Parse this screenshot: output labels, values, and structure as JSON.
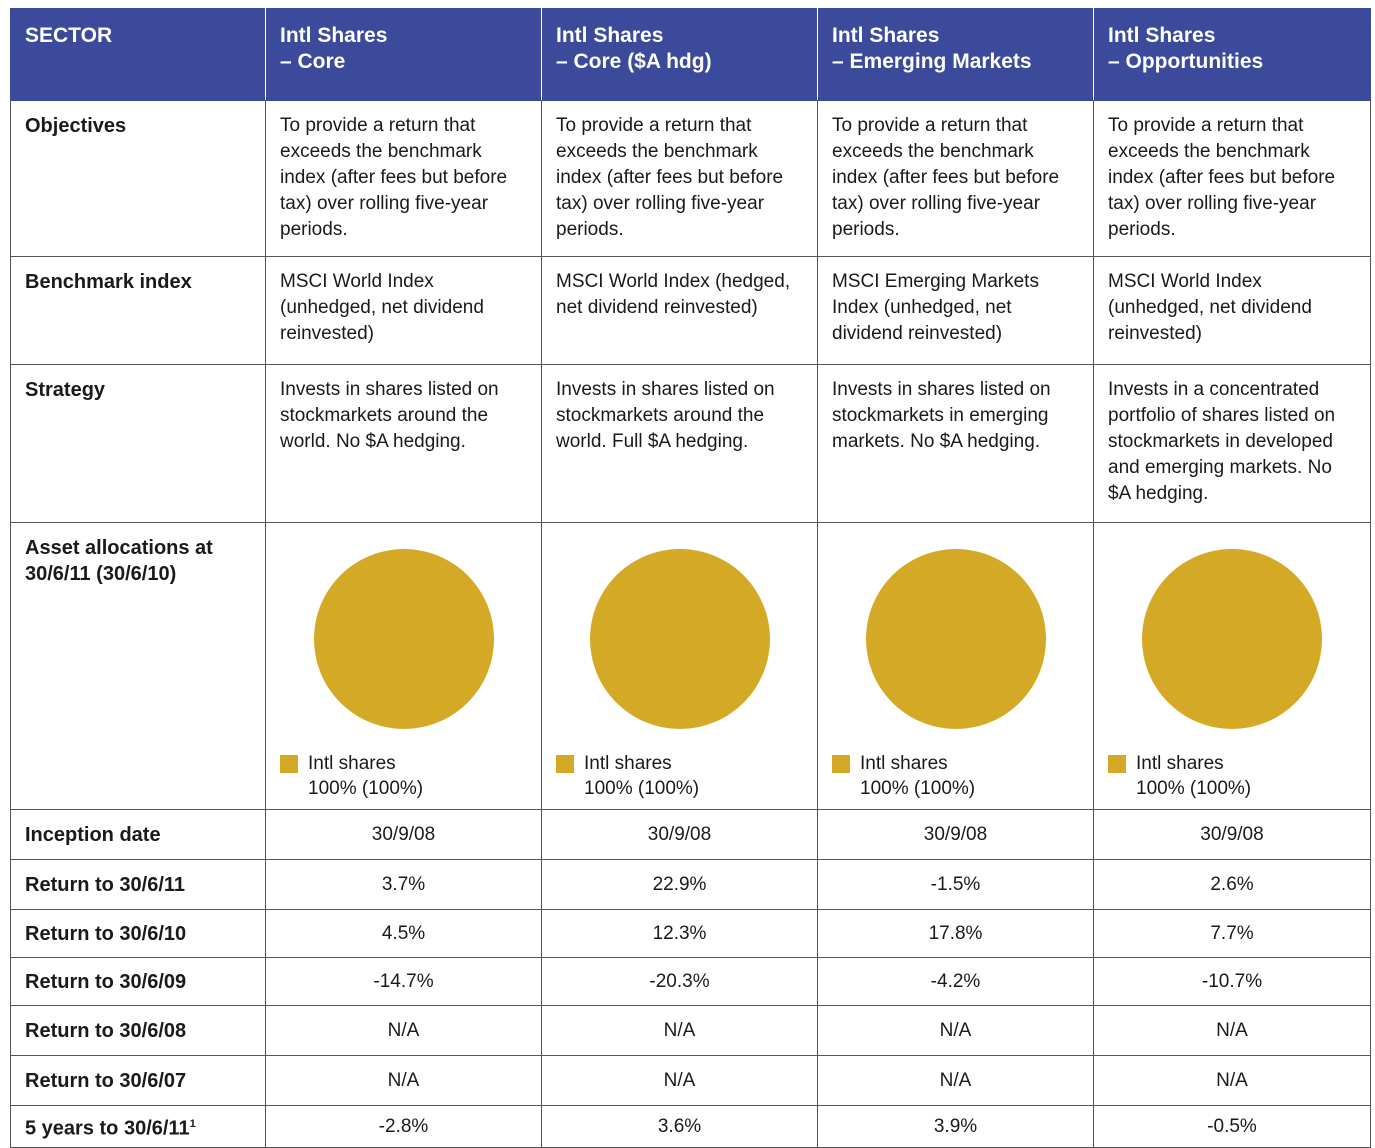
{
  "header": {
    "label": "SECTOR",
    "funds": [
      {
        "lines": [
          "Intl Shares",
          "– Core"
        ]
      },
      {
        "lines": [
          "Intl Shares",
          "– Core ($A hdg)"
        ]
      },
      {
        "lines": [
          "Intl Shares",
          "– Emerging Markets"
        ]
      },
      {
        "lines": [
          "Intl Shares",
          "– Opportunities"
        ]
      }
    ]
  },
  "text_rows": [
    {
      "label": "Objectives",
      "cells": [
        "To provide a return that exceeds the benchmark index (after fees but before tax) over rolling five-year periods.",
        "To provide a return that exceeds the benchmark index (after fees but before tax) over rolling five-year periods.",
        "To provide a return that exceeds the benchmark index (after fees but before tax) over rolling five-year periods.",
        "To provide a return that exceeds the benchmark index (after fees but before tax) over rolling five-year periods."
      ]
    },
    {
      "label": "Benchmark index",
      "cells": [
        "MSCI World Index (unhedged, net dividend reinvested)",
        "MSCI World Index (hedged, net dividend reinvested)",
        "MSCI Emerging Markets Index (unhedged, net dividend reinvested)",
        "MSCI World Index (unhedged, net dividend reinvested)"
      ]
    },
    {
      "label": "Strategy",
      "cells": [
        "Invests in shares listed on stockmarkets around the world. No $A hedging.",
        "Invests in shares listed on stockmarkets around the world. Full $A hedging.",
        "Invests in shares listed on stockmarkets in emerging markets. No $A hedging.",
        "Invests in a concentrated portfolio of shares listed on stockmarkets in developed and emerging markets. No $A hedging."
      ]
    }
  ],
  "allocation_row": {
    "label_lines": [
      "Asset allocations at",
      "30/6/11 (30/6/10)"
    ],
    "color": "#d4a926",
    "cells": [
      {
        "name": "Intl shares",
        "value": 100,
        "value_label": "100% (100%)"
      },
      {
        "name": "Intl shares",
        "value": 100,
        "value_label": "100% (100%)"
      },
      {
        "name": "Intl shares",
        "value": 100,
        "value_label": "100% (100%)"
      },
      {
        "name": "Intl shares",
        "value": 100,
        "value_label": "100% (100%)"
      }
    ]
  },
  "return_rows": [
    {
      "label": "Inception date",
      "cells": [
        "30/9/08",
        "30/9/08",
        "30/9/08",
        "30/9/08"
      ]
    },
    {
      "label": "Return to 30/6/11",
      "cells": [
        "3.7%",
        "22.9%",
        "-1.5%",
        "2.6%"
      ]
    },
    {
      "label": "Return to 30/6/10",
      "cells": [
        "4.5%",
        "12.3%",
        "17.8%",
        "7.7%"
      ]
    },
    {
      "label": "Return to 30/6/09",
      "cells": [
        "-14.7%",
        "-20.3%",
        "-4.2%",
        "-10.7%"
      ]
    },
    {
      "label": "Return to 30/6/08",
      "cells": [
        "N/A",
        "N/A",
        "N/A",
        "N/A"
      ]
    },
    {
      "label": "Return to 30/6/07",
      "cells": [
        "N/A",
        "N/A",
        "N/A",
        "N/A"
      ]
    },
    {
      "label": "5 years to 30/6/11",
      "note": "1",
      "cells": [
        "-2.8%",
        "3.6%",
        "3.9%",
        "-0.5%"
      ]
    }
  ]
}
